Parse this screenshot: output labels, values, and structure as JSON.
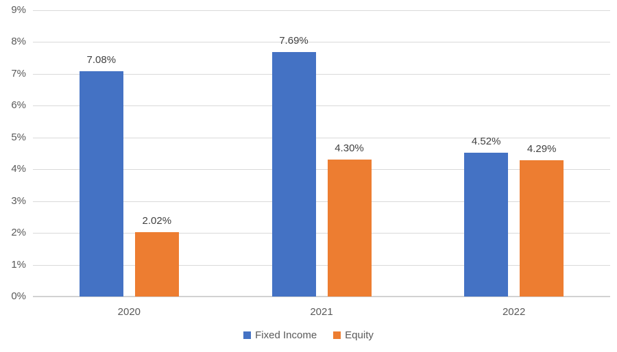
{
  "chart_data": {
    "type": "bar",
    "title": "",
    "xlabel": "",
    "ylabel": "",
    "categories": [
      "2020",
      "2021",
      "2022"
    ],
    "series": [
      {
        "name": "Fixed Income",
        "color": "#4472C4",
        "values": [
          7.08,
          7.69,
          4.52
        ],
        "labels": [
          "7.08%",
          "7.69%",
          "4.52%"
        ]
      },
      {
        "name": "Equity",
        "color": "#ED7D31",
        "values": [
          2.02,
          4.3,
          4.29
        ],
        "labels": [
          "2.02%",
          "4.30%",
          "4.29%"
        ]
      }
    ],
    "ylim": [
      0,
      9
    ],
    "ytick_step": 1,
    "ytick_labels": [
      "0%",
      "1%",
      "2%",
      "3%",
      "4%",
      "5%",
      "6%",
      "7%",
      "8%",
      "9%"
    ],
    "grid": true,
    "legend_position": "bottom"
  },
  "colors": {
    "bar_fixed_income": "#4472C4",
    "bar_equity": "#ED7D31",
    "gridline": "#D9D9D9",
    "axis_line": "#D2D2D2",
    "tick_label": "#595959",
    "data_label": "#404040",
    "legend_label": "#595959",
    "background": "#FFFFFF"
  },
  "legend": {
    "items": [
      {
        "label": "Fixed Income",
        "color": "#4472C4"
      },
      {
        "label": "Equity",
        "color": "#ED7D31"
      }
    ]
  }
}
